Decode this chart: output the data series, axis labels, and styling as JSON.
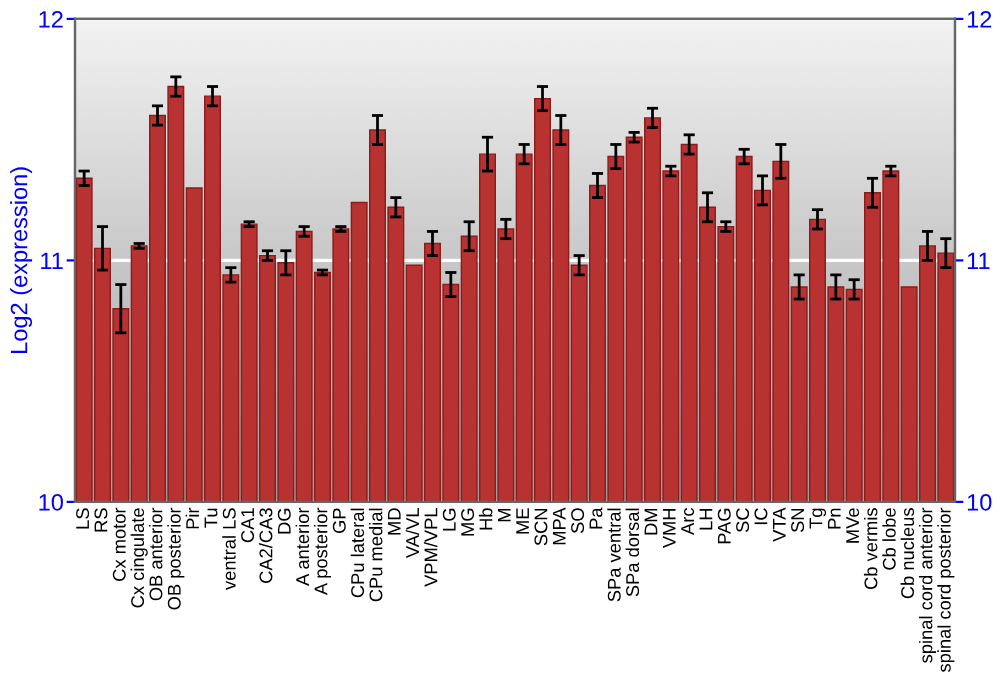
{
  "chart_data": {
    "type": "bar",
    "ylabel": "Log2 (expression)",
    "categories": [
      "LS",
      "RS",
      "Cx motor",
      "Cx cingulate",
      "OB anterior",
      "OB posterior",
      "Pir",
      "Tu",
      "ventral LS",
      "CA1",
      "CA2/CA3",
      "DG",
      "A anterior",
      "A posterior",
      "GP",
      "CPu lateral",
      "CPu medial",
      "MD",
      "VA/VL",
      "VPM/VPL",
      "LG",
      "MG",
      "Hb",
      "M",
      "ME",
      "SCN",
      "MPA",
      "SO",
      "Pa",
      "SPa ventral",
      "SPa dorsal",
      "DM",
      "VMH",
      "Arc",
      "LH",
      "PAG",
      "SC",
      "IC",
      "VTA",
      "SN",
      "Tg",
      "Pn",
      "MVe",
      "Cb vermis",
      "Cb lobe",
      "Cb nucleus",
      "spinal cord anterior",
      "spinal cord posterior"
    ],
    "values": [
      11.34,
      11.05,
      10.8,
      11.06,
      11.6,
      11.72,
      11.3,
      11.68,
      10.94,
      11.15,
      11.02,
      10.99,
      11.12,
      10.95,
      11.13,
      11.24,
      11.54,
      11.22,
      10.98,
      11.07,
      10.9,
      11.1,
      11.44,
      11.13,
      11.44,
      11.67,
      11.54,
      10.98,
      11.31,
      11.43,
      11.51,
      11.59,
      11.37,
      11.48,
      11.22,
      11.14,
      11.43,
      11.29,
      11.41,
      10.89,
      11.17,
      10.89,
      10.88,
      11.28,
      11.37,
      10.89,
      11.06,
      11.03
    ],
    "errors": [
      0.03,
      0.09,
      0.1,
      0.01,
      0.04,
      0.04,
      null,
      0.04,
      0.03,
      0.01,
      0.02,
      0.05,
      0.02,
      0.01,
      0.01,
      null,
      0.06,
      0.04,
      null,
      0.05,
      0.05,
      0.06,
      0.07,
      0.04,
      0.04,
      0.05,
      0.06,
      0.04,
      0.05,
      0.05,
      0.02,
      0.04,
      0.02,
      0.04,
      0.06,
      0.02,
      0.03,
      0.06,
      0.07,
      0.05,
      0.04,
      0.05,
      0.04,
      0.06,
      0.02,
      null,
      0.06,
      0.06
    ],
    "color": "#b83232",
    "ylim": [
      10,
      12
    ],
    "yticks": [
      10,
      11,
      12
    ],
    "y2lim": [
      10,
      12
    ],
    "y2ticks": [
      10,
      11,
      12
    ],
    "grid": "y"
  }
}
